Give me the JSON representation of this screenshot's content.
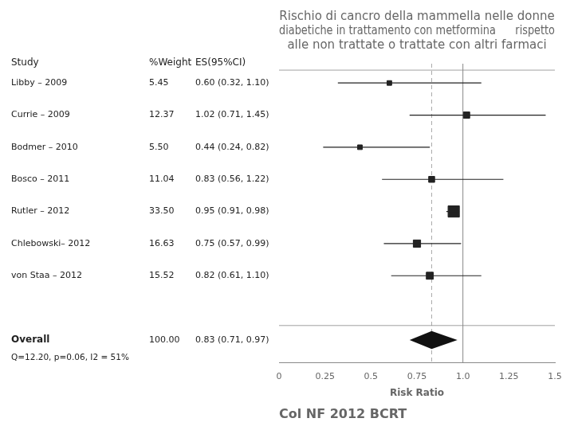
{
  "chart_data": {
    "type": "forest",
    "title": [
      "Rischio di cancro della mammella nelle donne",
      "diabetiche in trattamento con metformina      rispetto",
      "alle non trattate o trattate con altri farmaci"
    ],
    "footer": "Col NF 2012 BCRT",
    "x_label": "Risk Ratio",
    "column_headers": [
      "Study",
      "%Weight",
      "ES(95%CI)"
    ],
    "categories": [
      "Libby – 2009",
      "Currie – 2009",
      "Bodmer – 2010",
      "Bosco – 2011",
      "Rutler – 2012",
      "Chlebowski– 2012",
      "von Staa – 2012"
    ],
    "values": [
      0.6,
      1.02,
      0.44,
      0.83,
      0.95,
      0.75,
      0.82
    ],
    "ci_lo": [
      0.32,
      0.71,
      0.24,
      0.56,
      0.91,
      0.57,
      0.61
    ],
    "ci_hi": [
      1.1,
      1.45,
      0.82,
      1.22,
      0.98,
      0.99,
      1.1
    ],
    "value_labels": [
      "0.60 (0.32, 1.10)",
      "1.02 (0.71, 1.45)",
      "0.44 (0.24, 0.82)",
      "0.83 (0.56, 1.22)",
      "0.95 (0.91, 0.98)",
      "0.75 (0.57, 0.99)",
      "0.82 (0.61, 1.10)"
    ],
    "weights": [
      5.45,
      12.37,
      5.5,
      11.04,
      33.5,
      16.63,
      15.52
    ],
    "weight_labels": [
      "5.45",
      "12.37",
      "5.50",
      "11.04",
      "33.50",
      "16.63",
      "15.52"
    ],
    "color": "#222222",
    "overall": {
      "name": "Overall",
      "value": 0.83,
      "ci_lo": 0.71,
      "ci_hi": 0.97,
      "value_label": "0.83 (0.71, 0.97)",
      "weight": 100.0,
      "weight_label": "100.00",
      "color": "#111111"
    },
    "overall_stat": "Q=12.20, p=0.06, I2 = 51%",
    "reference_lines": [
      {
        "value": 1.0,
        "line_style": "solid"
      },
      {
        "value": 0.83,
        "line_style": "dashed"
      }
    ],
    "xlim": [
      0,
      1.5
    ],
    "xticks": [
      0,
      0.25,
      0.5,
      0.75,
      {
        "value": 1,
        "label": "1.0"
      },
      1.25,
      1.5
    ],
    "grid": false
  }
}
